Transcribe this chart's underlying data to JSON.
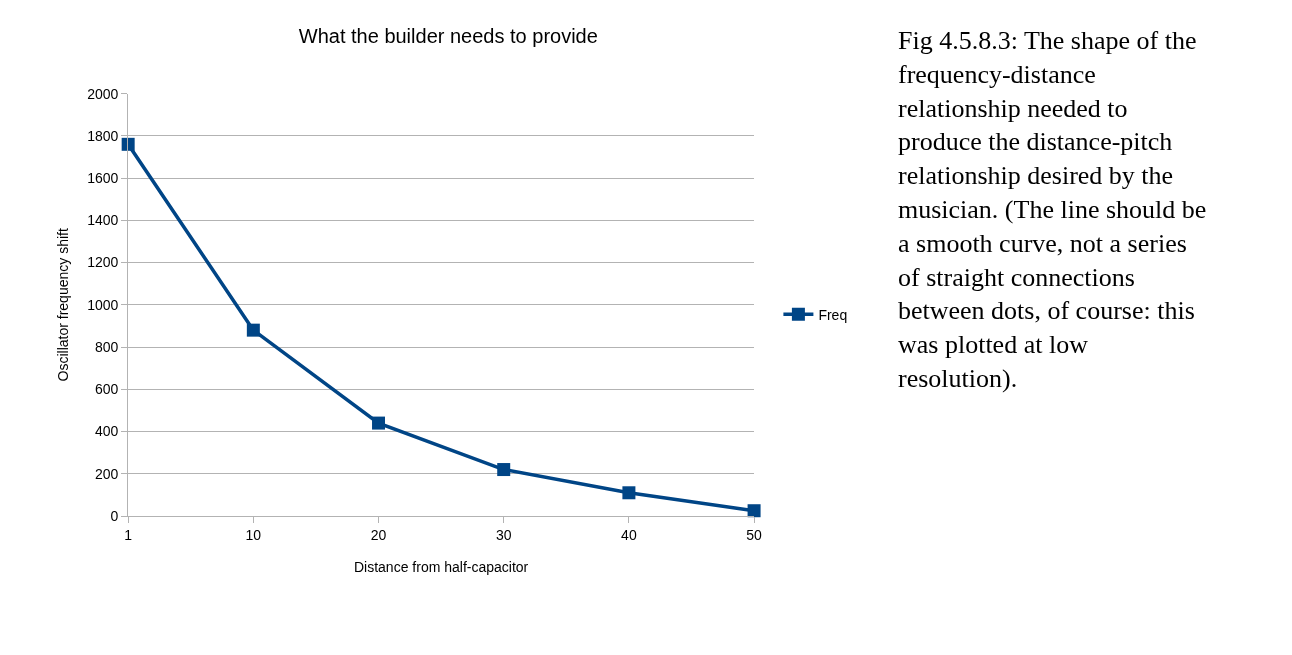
{
  "chart_data": {
    "type": "line",
    "title": "What the builder needs to provide",
    "xlabel": "Distance from half-capacitor",
    "ylabel": "Oscillator frequency shift",
    "categories": [
      "1",
      "10",
      "20",
      "30",
      "40",
      "50"
    ],
    "series": [
      {
        "name": "Freq",
        "color": "#004586",
        "values": [
          1760,
          880,
          440,
          220,
          110,
          25
        ]
      }
    ],
    "ylim": [
      0,
      2000
    ],
    "yticks": [
      0,
      200,
      400,
      600,
      800,
      1000,
      1200,
      1400,
      1600,
      1800,
      2000
    ],
    "grid": "y",
    "legend": "right",
    "marker": "square",
    "line_style": "solid",
    "annotations": [
      "Fig 4.5.8.3: The shape of the frequency-distance relationship needed to produce the distance-pitch relationship desired by the musician. (The line should be a smooth curve, not a series of straight connections between dots, of course: this was plotted at low resolution)."
    ]
  }
}
